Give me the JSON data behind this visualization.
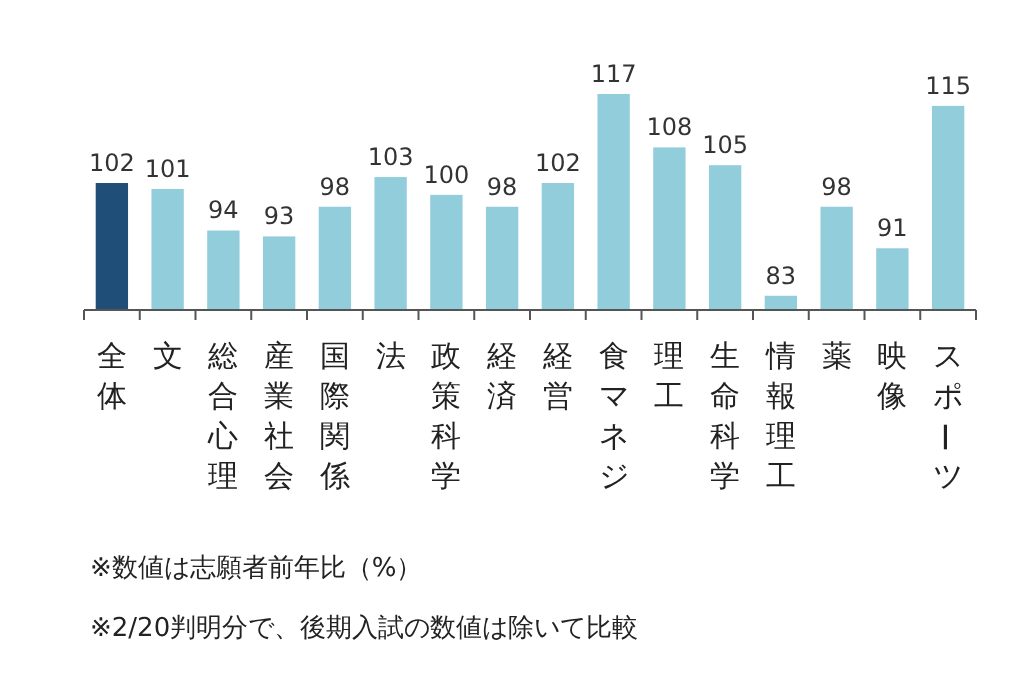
{
  "chart_data": {
    "type": "bar",
    "categories": [
      "全体",
      "文",
      "総合心理",
      "産業社会",
      "国際関係",
      "法",
      "政策科学",
      "経済",
      "経営",
      "食マネジ",
      "理工",
      "生命科学",
      "情報理工",
      "薬",
      "映像",
      "スポーツ"
    ],
    "values": [
      102,
      101,
      94,
      93,
      98,
      103,
      100,
      98,
      102,
      117,
      108,
      105,
      83,
      98,
      91,
      115
    ],
    "colors": [
      "#1f4e79",
      "#92cddc",
      "#92cddc",
      "#92cddc",
      "#92cddc",
      "#92cddc",
      "#92cddc",
      "#92cddc",
      "#92cddc",
      "#92cddc",
      "#92cddc",
      "#92cddc",
      "#92cddc",
      "#92cddc",
      "#92cddc",
      "#92cddc"
    ],
    "ylim": [
      80.6,
      117
    ],
    "data_labels": true,
    "annotations": [
      "※数値は志願者前年比（%）",
      "※2/20判明分で、後期入試の数値は除いて比較"
    ]
  }
}
